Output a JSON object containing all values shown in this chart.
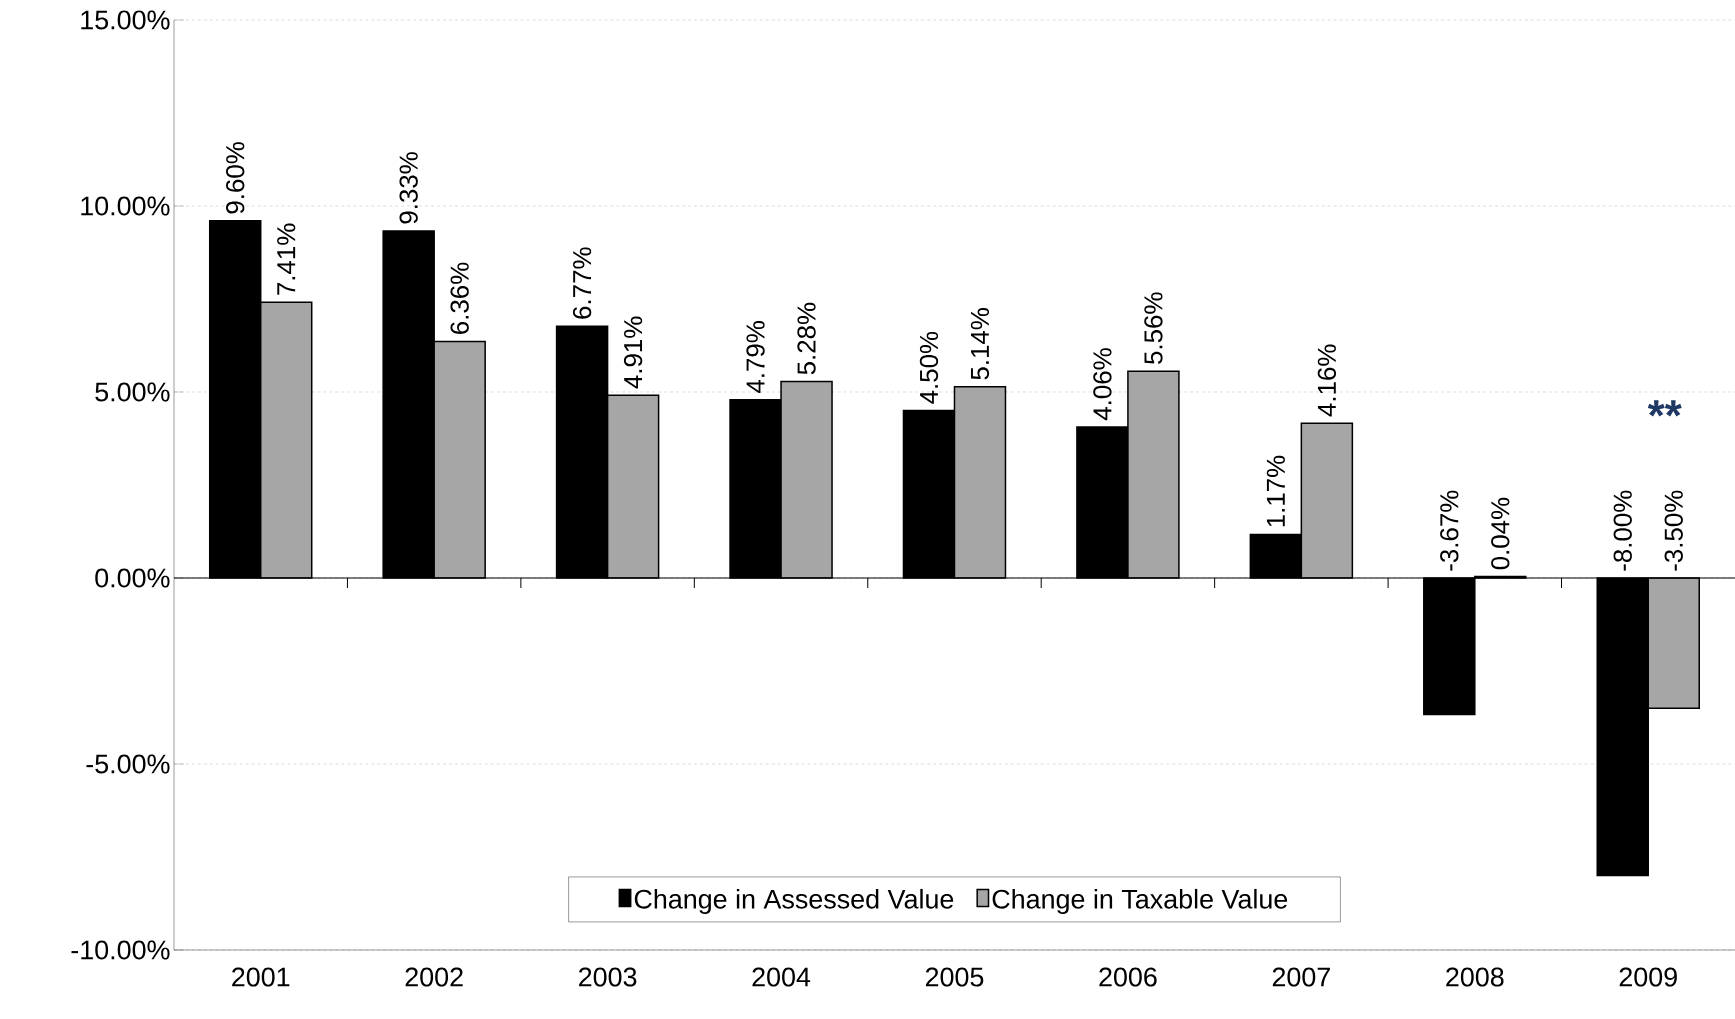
{
  "chart_data": {
    "type": "bar",
    "categories": [
      "2001",
      "2002",
      "2003",
      "2004",
      "2005",
      "2006",
      "2007",
      "2008",
      "2009"
    ],
    "series": [
      {
        "name": "Change in Assessed Value",
        "color": "#000000",
        "values": [
          9.6,
          9.33,
          6.77,
          4.79,
          4.5,
          4.06,
          1.17,
          -3.67,
          -8.0
        ],
        "value_labels": [
          "9.60%",
          "9.33%",
          "6.77%",
          "4.79%",
          "4.50%",
          "4.06%",
          "1.17%",
          "-3.67%",
          "-8.00%"
        ]
      },
      {
        "name": "Change in Taxable Value",
        "color": "#a6a6a6",
        "values": [
          7.41,
          6.36,
          4.91,
          5.28,
          5.14,
          5.56,
          4.16,
          0.04,
          -3.5
        ],
        "value_labels": [
          "7.41%",
          "6.36%",
          "4.91%",
          "5.28%",
          "5.14%",
          "5.56%",
          "4.16%",
          "0.04%",
          "-3.50%"
        ]
      }
    ],
    "ylim": [
      -10,
      15
    ],
    "yticks": [
      {
        "value": -10,
        "label": "-10.00%"
      },
      {
        "value": -5,
        "label": "-5.00%"
      },
      {
        "value": 0,
        "label": "0.00%"
      },
      {
        "value": 5,
        "label": "5.00%"
      },
      {
        "value": 10,
        "label": "10.00%"
      },
      {
        "value": 15,
        "label": "15.00%"
      }
    ],
    "grid": "y",
    "legend": "bottom",
    "annotations": [
      "**"
    ]
  }
}
